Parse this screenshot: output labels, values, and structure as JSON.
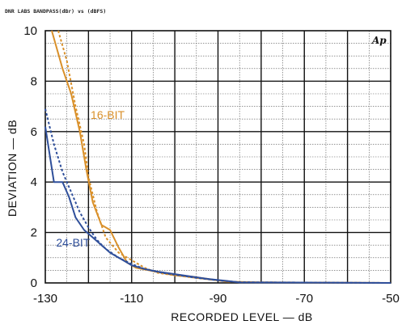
{
  "header": "DNR LABS   BANDPASS(dBr)  vs   (dBFS)",
  "logo": "Ap",
  "chart_data": {
    "type": "line",
    "xlabel": "RECORDED LEVEL — dB",
    "ylabel": "DEVIATION — dB",
    "xlim": [
      -130,
      -50
    ],
    "ylim": [
      0,
      10
    ],
    "x_tick_labels": [
      "-130",
      "-110",
      "-90",
      "-70",
      "-50"
    ],
    "y_tick_labels": [
      "0",
      "2",
      "4",
      "6",
      "8",
      "10"
    ],
    "grid": true,
    "series": [
      {
        "name": "16-BIT",
        "color": "#d9902a",
        "style": "solid",
        "points": [
          [
            -128.5,
            10
          ],
          [
            -126,
            8.5
          ],
          [
            -124,
            7.5
          ],
          [
            -122,
            6.0
          ],
          [
            -120.5,
            4.5
          ],
          [
            -119,
            3.2
          ],
          [
            -117,
            2.3
          ],
          [
            -115,
            2.1
          ],
          [
            -113,
            1.4
          ],
          [
            -111,
            0.8
          ],
          [
            -109,
            0.6
          ],
          [
            -106,
            0.5
          ],
          [
            -103,
            0.4
          ],
          [
            -100,
            0.3
          ],
          [
            -96,
            0.25
          ],
          [
            -92,
            0.15
          ],
          [
            -88,
            0.05
          ],
          [
            -80,
            0.02
          ],
          [
            -50,
            0.0
          ]
        ]
      },
      {
        "name": "16-BIT (dashed)",
        "color": "#d9902a",
        "style": "dashed",
        "points": [
          [
            -127,
            10
          ],
          [
            -125,
            8.8
          ],
          [
            -123,
            7.0
          ],
          [
            -121,
            5.5
          ],
          [
            -120,
            4.2
          ],
          [
            -118,
            2.8
          ],
          [
            -116,
            1.8
          ],
          [
            -113,
            1.2
          ],
          [
            -110,
            0.9
          ],
          [
            -107,
            0.6
          ],
          [
            -104,
            0.4
          ],
          [
            -100,
            0.3
          ],
          [
            -95,
            0.2
          ],
          [
            -90,
            0.1
          ],
          [
            -85,
            0.03
          ],
          [
            -50,
            0.0
          ]
        ]
      },
      {
        "name": "24-BIT",
        "color": "#2f4f9a",
        "style": "solid",
        "points": [
          [
            -130,
            6.2
          ],
          [
            -128,
            4.0
          ],
          [
            -126,
            4.0
          ],
          [
            -124.5,
            3.4
          ],
          [
            -123,
            2.6
          ],
          [
            -121,
            2.1
          ],
          [
            -119,
            1.8
          ],
          [
            -117,
            1.5
          ],
          [
            -115,
            1.2
          ],
          [
            -112,
            0.9
          ],
          [
            -110,
            0.7
          ],
          [
            -107,
            0.55
          ],
          [
            -104,
            0.45
          ],
          [
            -100,
            0.35
          ],
          [
            -96,
            0.25
          ],
          [
            -92,
            0.15
          ],
          [
            -88,
            0.08
          ],
          [
            -85,
            0.02
          ],
          [
            -50,
            0.0
          ]
        ]
      },
      {
        "name": "24-BIT (dashed)",
        "color": "#2f4f9a",
        "style": "dashed",
        "points": [
          [
            -130,
            6.9
          ],
          [
            -128,
            5.5
          ],
          [
            -126,
            4.4
          ],
          [
            -124,
            3.6
          ],
          [
            -122,
            2.8
          ],
          [
            -120,
            2.2
          ],
          [
            -118,
            1.7
          ],
          [
            -116,
            1.35
          ],
          [
            -113,
            1.0
          ],
          [
            -110,
            0.75
          ],
          [
            -107,
            0.55
          ],
          [
            -103,
            0.4
          ],
          [
            -99,
            0.3
          ],
          [
            -95,
            0.2
          ],
          [
            -90,
            0.1
          ],
          [
            -85,
            0.03
          ],
          [
            -50,
            0.0
          ]
        ]
      }
    ],
    "annotations": [
      {
        "text": "16-BIT",
        "color": "#d9902a",
        "x": -119.5,
        "y": 6.5
      },
      {
        "text": "24-BIT",
        "color": "#2f4f9a",
        "x": -127.5,
        "y": 1.45
      }
    ]
  }
}
